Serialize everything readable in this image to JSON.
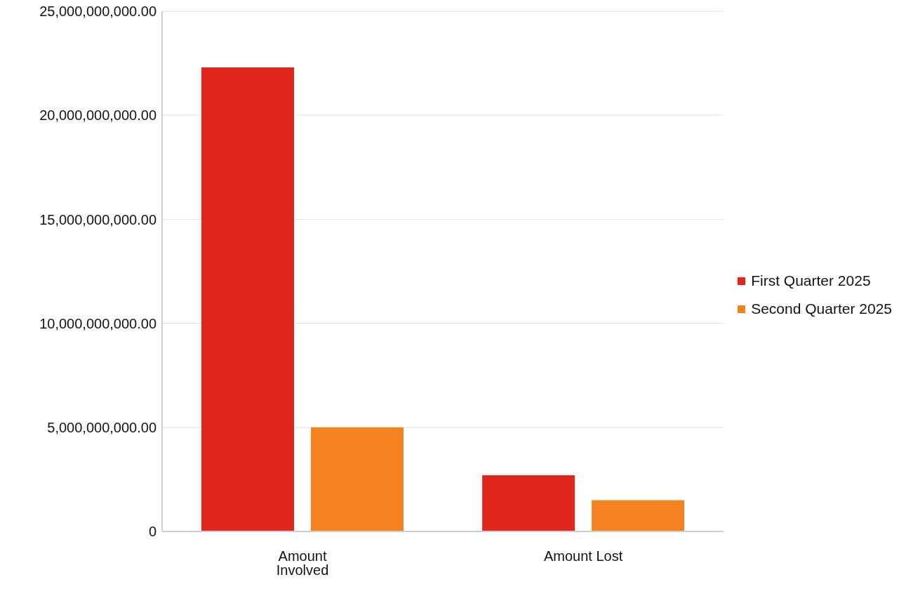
{
  "chart_data": {
    "type": "bar",
    "categories": [
      "Amount Involved",
      "Amount Lost"
    ],
    "series": [
      {
        "name": "First Quarter 2025",
        "color": "#e0261b",
        "values": [
          22300000000,
          2700000000
        ]
      },
      {
        "name": "Second Quarter 2025",
        "color": "#f58220",
        "values": [
          5000000000,
          1500000000
        ]
      }
    ],
    "ylim": [
      0,
      25000000000
    ],
    "yticks": [
      0,
      {
        "value": 5000000000,
        "label": "5,000,000,000.00"
      },
      {
        "value": 10000000000,
        "label": "10,000,000,000.00"
      },
      {
        "value": 15000000000,
        "label": "15,000,000,000.00"
      },
      {
        "value": 20000000000,
        "label": "20,000,000,000.00"
      },
      {
        "value": 25000000000,
        "label": "25,000,000,000.00"
      }
    ],
    "grid": "y",
    "legend": "right"
  }
}
